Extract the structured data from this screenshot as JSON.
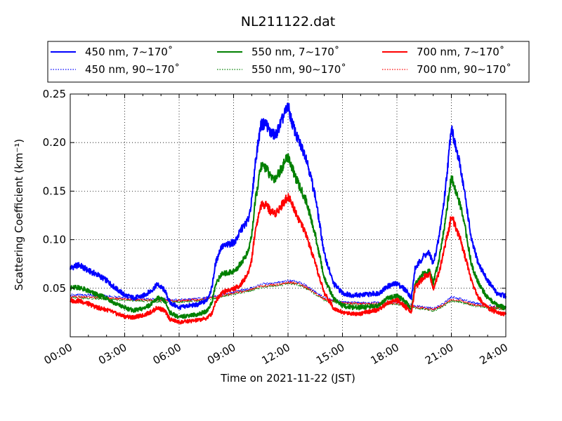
{
  "chart_data": {
    "type": "line",
    "title": "NL211122.dat",
    "xlabel": "Time on 2021-11-22 (JST)",
    "ylabel": "Scattering Coefficient (km⁻¹)",
    "xlim": [
      0,
      24
    ],
    "ylim": [
      0.0,
      0.25
    ],
    "grid": true,
    "legend_position": "top",
    "x_ticks": [
      {
        "v": 0,
        "label": "00:00"
      },
      {
        "v": 3,
        "label": "03:00"
      },
      {
        "v": 6,
        "label": "06:00"
      },
      {
        "v": 9,
        "label": "09:00"
      },
      {
        "v": 12,
        "label": "12:00"
      },
      {
        "v": 15,
        "label": "15:00"
      },
      {
        "v": 18,
        "label": "18:00"
      },
      {
        "v": 21,
        "label": "21:00"
      },
      {
        "v": 24,
        "label": "24:00"
      }
    ],
    "y_ticks": [
      {
        "v": 0.05,
        "label": "0.05"
      },
      {
        "v": 0.1,
        "label": "0.10"
      },
      {
        "v": 0.15,
        "label": "0.15"
      },
      {
        "v": 0.2,
        "label": "0.20"
      },
      {
        "v": 0.25,
        "label": "0.25"
      }
    ],
    "series": [
      {
        "name": "450 nm, 7∼170˚",
        "color": "#0000ff",
        "style": "solid",
        "points": [
          [
            0,
            0.071
          ],
          [
            0.5,
            0.074
          ],
          [
            1,
            0.068
          ],
          [
            1.5,
            0.064
          ],
          [
            2,
            0.058
          ],
          [
            2.5,
            0.05
          ],
          [
            3,
            0.043
          ],
          [
            3.5,
            0.04
          ],
          [
            4,
            0.042
          ],
          [
            4.5,
            0.048
          ],
          [
            4.8,
            0.054
          ],
          [
            5.2,
            0.048
          ],
          [
            5.5,
            0.035
          ],
          [
            6,
            0.03
          ],
          [
            6.5,
            0.032
          ],
          [
            7,
            0.033
          ],
          [
            7.5,
            0.037
          ],
          [
            7.8,
            0.05
          ],
          [
            8.0,
            0.075
          ],
          [
            8.3,
            0.092
          ],
          [
            8.7,
            0.095
          ],
          [
            9.1,
            0.098
          ],
          [
            9.4,
            0.11
          ],
          [
            9.8,
            0.12
          ],
          [
            10.0,
            0.14
          ],
          [
            10.2,
            0.18
          ],
          [
            10.5,
            0.218
          ],
          [
            10.8,
            0.22
          ],
          [
            11.0,
            0.211
          ],
          [
            11.3,
            0.207
          ],
          [
            11.6,
            0.22
          ],
          [
            12.0,
            0.238
          ],
          [
            12.2,
            0.222
          ],
          [
            12.5,
            0.205
          ],
          [
            13.0,
            0.185
          ],
          [
            13.5,
            0.145
          ],
          [
            14.0,
            0.085
          ],
          [
            14.5,
            0.055
          ],
          [
            15,
            0.045
          ],
          [
            15.5,
            0.043
          ],
          [
            16,
            0.043
          ],
          [
            16.5,
            0.044
          ],
          [
            17,
            0.045
          ],
          [
            17.5,
            0.052
          ],
          [
            18,
            0.055
          ],
          [
            18.5,
            0.048
          ],
          [
            18.8,
            0.04
          ],
          [
            19.0,
            0.07
          ],
          [
            19.5,
            0.084
          ],
          [
            19.8,
            0.086
          ],
          [
            20.0,
            0.075
          ],
          [
            20.3,
            0.1
          ],
          [
            20.6,
            0.14
          ],
          [
            20.85,
            0.185
          ],
          [
            21.0,
            0.218
          ],
          [
            21.2,
            0.198
          ],
          [
            21.5,
            0.175
          ],
          [
            21.8,
            0.14
          ],
          [
            22.1,
            0.1
          ],
          [
            22.5,
            0.075
          ],
          [
            23,
            0.058
          ],
          [
            23.5,
            0.045
          ],
          [
            24,
            0.042
          ]
        ]
      },
      {
        "name": "550 nm, 7∼170˚",
        "color": "#008000",
        "style": "solid",
        "points": [
          [
            0,
            0.05
          ],
          [
            0.5,
            0.051
          ],
          [
            1,
            0.047
          ],
          [
            1.5,
            0.043
          ],
          [
            2,
            0.04
          ],
          [
            2.5,
            0.034
          ],
          [
            3,
            0.03
          ],
          [
            3.5,
            0.027
          ],
          [
            4,
            0.029
          ],
          [
            4.5,
            0.034
          ],
          [
            4.8,
            0.04
          ],
          [
            5.2,
            0.037
          ],
          [
            5.5,
            0.025
          ],
          [
            6,
            0.02
          ],
          [
            6.5,
            0.022
          ],
          [
            7,
            0.023
          ],
          [
            7.5,
            0.026
          ],
          [
            7.8,
            0.035
          ],
          [
            8.0,
            0.053
          ],
          [
            8.3,
            0.064
          ],
          [
            8.7,
            0.066
          ],
          [
            9.1,
            0.068
          ],
          [
            9.4,
            0.076
          ],
          [
            9.8,
            0.087
          ],
          [
            10.0,
            0.105
          ],
          [
            10.2,
            0.14
          ],
          [
            10.5,
            0.175
          ],
          [
            10.8,
            0.175
          ],
          [
            11.0,
            0.165
          ],
          [
            11.3,
            0.163
          ],
          [
            11.6,
            0.172
          ],
          [
            12.0,
            0.186
          ],
          [
            12.2,
            0.175
          ],
          [
            12.5,
            0.16
          ],
          [
            13.0,
            0.14
          ],
          [
            13.5,
            0.105
          ],
          [
            14.0,
            0.06
          ],
          [
            14.5,
            0.04
          ],
          [
            15,
            0.032
          ],
          [
            15.5,
            0.03
          ],
          [
            16,
            0.03
          ],
          [
            16.5,
            0.031
          ],
          [
            17,
            0.032
          ],
          [
            17.5,
            0.04
          ],
          [
            18,
            0.042
          ],
          [
            18.5,
            0.036
          ],
          [
            18.8,
            0.028
          ],
          [
            19.0,
            0.055
          ],
          [
            19.5,
            0.066
          ],
          [
            19.8,
            0.067
          ],
          [
            20.0,
            0.055
          ],
          [
            20.3,
            0.078
          ],
          [
            20.6,
            0.112
          ],
          [
            20.85,
            0.145
          ],
          [
            21.0,
            0.165
          ],
          [
            21.2,
            0.152
          ],
          [
            21.5,
            0.135
          ],
          [
            21.8,
            0.108
          ],
          [
            22.1,
            0.075
          ],
          [
            22.5,
            0.055
          ],
          [
            23,
            0.04
          ],
          [
            23.5,
            0.033
          ],
          [
            24,
            0.03
          ]
        ]
      },
      {
        "name": "700 nm, 7∼170˚",
        "color": "#ff0000",
        "style": "solid",
        "points": [
          [
            0,
            0.037
          ],
          [
            0.5,
            0.037
          ],
          [
            1,
            0.034
          ],
          [
            1.5,
            0.03
          ],
          [
            2,
            0.028
          ],
          [
            2.5,
            0.024
          ],
          [
            3,
            0.021
          ],
          [
            3.5,
            0.02
          ],
          [
            4,
            0.022
          ],
          [
            4.5,
            0.026
          ],
          [
            4.8,
            0.03
          ],
          [
            5.2,
            0.027
          ],
          [
            5.5,
            0.018
          ],
          [
            6,
            0.015
          ],
          [
            6.5,
            0.016
          ],
          [
            7,
            0.017
          ],
          [
            7.5,
            0.019
          ],
          [
            7.8,
            0.024
          ],
          [
            8.0,
            0.036
          ],
          [
            8.3,
            0.045
          ],
          [
            8.7,
            0.048
          ],
          [
            9.1,
            0.05
          ],
          [
            9.4,
            0.054
          ],
          [
            9.8,
            0.065
          ],
          [
            10.0,
            0.08
          ],
          [
            10.2,
            0.11
          ],
          [
            10.5,
            0.135
          ],
          [
            10.8,
            0.137
          ],
          [
            11.0,
            0.13
          ],
          [
            11.3,
            0.127
          ],
          [
            11.6,
            0.134
          ],
          [
            12.0,
            0.145
          ],
          [
            12.2,
            0.138
          ],
          [
            12.5,
            0.125
          ],
          [
            13.0,
            0.105
          ],
          [
            13.5,
            0.075
          ],
          [
            14.0,
            0.045
          ],
          [
            14.5,
            0.03
          ],
          [
            15,
            0.025
          ],
          [
            15.5,
            0.024
          ],
          [
            16,
            0.024
          ],
          [
            16.5,
            0.026
          ],
          [
            17,
            0.028
          ],
          [
            17.5,
            0.035
          ],
          [
            18,
            0.038
          ],
          [
            18.5,
            0.03
          ],
          [
            18.8,
            0.026
          ],
          [
            19.0,
            0.05
          ],
          [
            19.5,
            0.062
          ],
          [
            19.8,
            0.065
          ],
          [
            20.0,
            0.05
          ],
          [
            20.3,
            0.065
          ],
          [
            20.6,
            0.09
          ],
          [
            20.85,
            0.11
          ],
          [
            21.0,
            0.125
          ],
          [
            21.2,
            0.115
          ],
          [
            21.5,
            0.1
          ],
          [
            21.8,
            0.08
          ],
          [
            22.1,
            0.058
          ],
          [
            22.5,
            0.04
          ],
          [
            23,
            0.03
          ],
          [
            23.5,
            0.025
          ],
          [
            24,
            0.023
          ]
        ]
      },
      {
        "name": "450 nm, 90∼170˚",
        "color": "#0000ff",
        "style": "dotted",
        "points": [
          [
            0,
            0.043
          ],
          [
            1,
            0.043
          ],
          [
            2,
            0.042
          ],
          [
            3,
            0.04
          ],
          [
            4,
            0.039
          ],
          [
            5,
            0.039
          ],
          [
            6,
            0.038
          ],
          [
            7,
            0.039
          ],
          [
            8,
            0.042
          ],
          [
            9,
            0.046
          ],
          [
            10,
            0.05
          ],
          [
            10.5,
            0.054
          ],
          [
            11,
            0.055
          ],
          [
            11.5,
            0.056
          ],
          [
            12,
            0.058
          ],
          [
            12.5,
            0.057
          ],
          [
            13,
            0.053
          ],
          [
            13.5,
            0.046
          ],
          [
            14,
            0.04
          ],
          [
            15,
            0.036
          ],
          [
            16,
            0.035
          ],
          [
            17,
            0.035
          ],
          [
            18,
            0.036
          ],
          [
            18.5,
            0.034
          ],
          [
            19,
            0.032
          ],
          [
            20,
            0.029
          ],
          [
            20.5,
            0.033
          ],
          [
            21,
            0.041
          ],
          [
            21.5,
            0.039
          ],
          [
            22,
            0.036
          ],
          [
            23,
            0.032
          ],
          [
            24,
            0.03
          ]
        ]
      },
      {
        "name": "550 nm, 90∼170˚",
        "color": "#008000",
        "style": "dotted",
        "points": [
          [
            0,
            0.04
          ],
          [
            1,
            0.04
          ],
          [
            2,
            0.039
          ],
          [
            3,
            0.038
          ],
          [
            4,
            0.037
          ],
          [
            5,
            0.036
          ],
          [
            6,
            0.036
          ],
          [
            7,
            0.037
          ],
          [
            8,
            0.04
          ],
          [
            9,
            0.044
          ],
          [
            10,
            0.048
          ],
          [
            10.5,
            0.051
          ],
          [
            11,
            0.052
          ],
          [
            11.5,
            0.053
          ],
          [
            12,
            0.055
          ],
          [
            12.5,
            0.054
          ],
          [
            13,
            0.05
          ],
          [
            13.5,
            0.044
          ],
          [
            14,
            0.038
          ],
          [
            15,
            0.034
          ],
          [
            16,
            0.033
          ],
          [
            17,
            0.033
          ],
          [
            18,
            0.034
          ],
          [
            18.5,
            0.032
          ],
          [
            19,
            0.03
          ],
          [
            20,
            0.027
          ],
          [
            20.5,
            0.031
          ],
          [
            21,
            0.037
          ],
          [
            21.5,
            0.036
          ],
          [
            22,
            0.033
          ],
          [
            23,
            0.03
          ],
          [
            24,
            0.028
          ]
        ]
      },
      {
        "name": "700 nm, 90∼170˚",
        "color": "#ff0000",
        "style": "dotted",
        "points": [
          [
            0,
            0.041
          ],
          [
            1,
            0.041
          ],
          [
            2,
            0.04
          ],
          [
            3,
            0.039
          ],
          [
            4,
            0.038
          ],
          [
            5,
            0.038
          ],
          [
            6,
            0.037
          ],
          [
            7,
            0.038
          ],
          [
            8,
            0.041
          ],
          [
            9,
            0.045
          ],
          [
            10,
            0.049
          ],
          [
            10.5,
            0.052
          ],
          [
            11,
            0.053
          ],
          [
            11.5,
            0.054
          ],
          [
            12,
            0.056
          ],
          [
            12.5,
            0.055
          ],
          [
            13,
            0.051
          ],
          [
            13.5,
            0.045
          ],
          [
            14,
            0.039
          ],
          [
            15,
            0.035
          ],
          [
            16,
            0.034
          ],
          [
            17,
            0.034
          ],
          [
            18,
            0.035
          ],
          [
            18.5,
            0.033
          ],
          [
            19,
            0.031
          ],
          [
            20,
            0.028
          ],
          [
            20.5,
            0.032
          ],
          [
            21,
            0.038
          ],
          [
            21.5,
            0.037
          ],
          [
            22,
            0.034
          ],
          [
            23,
            0.031
          ],
          [
            24,
            0.029
          ]
        ]
      }
    ]
  }
}
